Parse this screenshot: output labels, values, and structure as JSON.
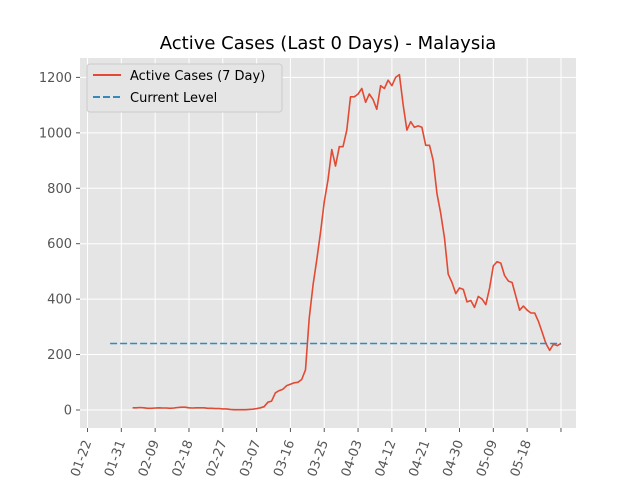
{
  "chart_data": {
    "type": "line",
    "title": "Active Cases (Last 0 Days) - Malaysia",
    "xlabel": "",
    "ylabel": "",
    "x_tick_labels": [
      "01-22",
      "01-31",
      "02-09",
      "02-18",
      "02-27",
      "03-07",
      "03-16",
      "03-25",
      "04-03",
      "04-12",
      "04-21",
      "04-30",
      "05-09",
      "05-18"
    ],
    "y_ticks": [
      0,
      200,
      400,
      600,
      800,
      1000,
      1200
    ],
    "ylim": [
      -65,
      1270
    ],
    "xlim": [
      0,
      121
    ],
    "grid": true,
    "legend_position": "top-left",
    "colors": {
      "series": "#E24A33",
      "reference": "#348ABD",
      "background": "#E5E5E5",
      "grid": "#FFFFFF"
    },
    "series": [
      {
        "name": "Active Cases (7 Day)",
        "style": "solid",
        "points": [
          [
            12,
            8
          ],
          [
            13,
            8
          ],
          [
            14,
            9
          ],
          [
            15,
            8
          ],
          [
            16,
            6
          ],
          [
            17,
            6
          ],
          [
            18,
            7
          ],
          [
            19,
            8
          ],
          [
            20,
            7
          ],
          [
            21,
            7
          ],
          [
            22,
            6
          ],
          [
            23,
            7
          ],
          [
            24,
            9
          ],
          [
            25,
            10
          ],
          [
            26,
            10
          ],
          [
            27,
            8
          ],
          [
            28,
            7
          ],
          [
            29,
            8
          ],
          [
            30,
            8
          ],
          [
            31,
            8
          ],
          [
            32,
            6
          ],
          [
            33,
            6
          ],
          [
            34,
            5
          ],
          [
            35,
            5
          ],
          [
            36,
            4
          ],
          [
            37,
            4
          ],
          [
            38,
            2
          ],
          [
            39,
            1
          ],
          [
            40,
            1
          ],
          [
            41,
            1
          ],
          [
            42,
            1
          ],
          [
            43,
            2
          ],
          [
            44,
            3
          ],
          [
            45,
            5
          ],
          [
            46,
            8
          ],
          [
            47,
            12
          ],
          [
            48,
            28
          ],
          [
            49,
            32
          ],
          [
            50,
            62
          ],
          [
            51,
            70
          ],
          [
            52,
            75
          ],
          [
            53,
            88
          ],
          [
            54,
            93
          ],
          [
            55,
            98
          ],
          [
            56,
            100
          ],
          [
            57,
            110
          ],
          [
            58,
            145
          ],
          [
            59,
            330
          ],
          [
            60,
            450
          ],
          [
            61,
            540
          ],
          [
            62,
            640
          ],
          [
            63,
            750
          ],
          [
            64,
            830
          ],
          [
            65,
            940
          ],
          [
            66,
            880
          ],
          [
            67,
            950
          ],
          [
            68,
            950
          ],
          [
            69,
            1010
          ],
          [
            70,
            1130
          ],
          [
            71,
            1130
          ],
          [
            72,
            1140
          ],
          [
            73,
            1160
          ],
          [
            74,
            1110
          ],
          [
            75,
            1140
          ],
          [
            76,
            1120
          ],
          [
            77,
            1085
          ],
          [
            78,
            1170
          ],
          [
            79,
            1160
          ],
          [
            80,
            1190
          ],
          [
            81,
            1170
          ],
          [
            82,
            1200
          ],
          [
            83,
            1210
          ],
          [
            84,
            1100
          ],
          [
            85,
            1010
          ],
          [
            86,
            1040
          ],
          [
            87,
            1020
          ],
          [
            88,
            1025
          ],
          [
            89,
            1020
          ],
          [
            90,
            955
          ],
          [
            91,
            955
          ],
          [
            92,
            900
          ],
          [
            93,
            780
          ],
          [
            94,
            710
          ],
          [
            95,
            620
          ],
          [
            96,
            490
          ],
          [
            97,
            460
          ],
          [
            98,
            420
          ],
          [
            99,
            440
          ],
          [
            100,
            435
          ],
          [
            101,
            390
          ],
          [
            102,
            395
          ],
          [
            103,
            370
          ],
          [
            104,
            410
          ],
          [
            105,
            400
          ],
          [
            106,
            380
          ],
          [
            107,
            440
          ],
          [
            108,
            520
          ],
          [
            109,
            535
          ],
          [
            110,
            530
          ],
          [
            111,
            485
          ],
          [
            112,
            465
          ],
          [
            113,
            460
          ],
          [
            114,
            410
          ],
          [
            115,
            360
          ],
          [
            116,
            375
          ],
          [
            117,
            360
          ],
          [
            118,
            350
          ],
          [
            119,
            350
          ],
          [
            120,
            320
          ],
          [
            121,
            280
          ],
          [
            122,
            240
          ],
          [
            123,
            215
          ],
          [
            124,
            238
          ],
          [
            125,
            232
          ],
          [
            126,
            240
          ]
        ]
      },
      {
        "name": "Current Level",
        "style": "dashed",
        "points": [
          [
            6,
            240
          ],
          [
            126,
            240
          ]
        ]
      }
    ]
  }
}
